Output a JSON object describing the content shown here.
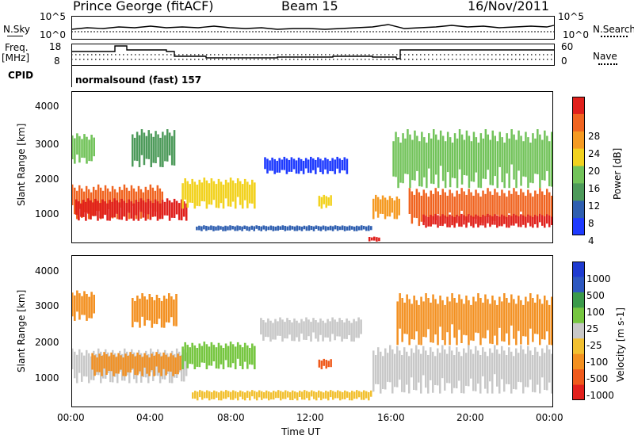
{
  "header": {
    "station": "Prince George (fitACF)",
    "beam": "Beam 15",
    "date": "16/Nov/2011"
  },
  "noise_panel": {
    "left_label": "N.Sky",
    "right_label": "N.Search",
    "left_ticks": [
      "10^5",
      "10^0"
    ],
    "right_ticks": [
      "10^5",
      "10^0"
    ]
  },
  "freq_panel": {
    "left_label_1": "Freq.",
    "left_label_2": "[MHz]",
    "right_label": "Nave",
    "left_ticks": [
      "18",
      "8"
    ],
    "right_ticks": [
      "60",
      "0"
    ]
  },
  "cpid": {
    "label": "CPID",
    "value": "normalsound (fast) 157"
  },
  "time_axis": {
    "label": "Time UT",
    "ticks": [
      "00:00",
      "04:00",
      "08:00",
      "12:00",
      "16:00",
      "20:00",
      "00:00"
    ]
  },
  "colors": {
    "power": [
      "#1f3bff",
      "#2f5fb0",
      "#4d9a5a",
      "#72c35a",
      "#f2d21f",
      "#f59a22",
      "#f06420",
      "#e0201c"
    ],
    "velocity": [
      "#1f3bd0",
      "#2e58c0",
      "#3b9a4a",
      "#76c640",
      "#c8c8c8",
      "#f2c030",
      "#f39020",
      "#ef5a1c",
      "#e2201c"
    ],
    "ground_scatter": "#c0c0c0"
  },
  "chart_data": [
    {
      "type": "heatmap",
      "name": "power",
      "title": "",
      "ylabel": "Slant Range [km]",
      "xlabel": "",
      "ylim": [
        200,
        4600
      ],
      "yticks": [
        "4000",
        "3000",
        "2000",
        "1000"
      ],
      "colorbar_label": "Power [dB]",
      "colorbar_ticks": [
        "28",
        "24",
        "20",
        "16",
        "12",
        "8",
        "4"
      ],
      "regions": [
        {
          "t0": 0.0,
          "t1": 4.6,
          "r0": 900,
          "r1": 1900,
          "level": 6
        },
        {
          "t0": 0.2,
          "t1": 5.8,
          "r0": 850,
          "r1": 1500,
          "level": 7
        },
        {
          "t0": 0.0,
          "t1": 1.2,
          "r0": 2500,
          "r1": 3400,
          "level": 3
        },
        {
          "t0": 3.0,
          "t1": 5.2,
          "r0": 2400,
          "r1": 3500,
          "level": 2
        },
        {
          "t0": 5.5,
          "t1": 9.2,
          "r0": 1200,
          "r1": 2100,
          "level": 4
        },
        {
          "t0": 6.2,
          "t1": 15.0,
          "r0": 550,
          "r1": 720,
          "level": 1
        },
        {
          "t0": 9.6,
          "t1": 13.8,
          "r0": 2200,
          "r1": 2700,
          "level": 0
        },
        {
          "t0": 12.3,
          "t1": 13.0,
          "r0": 1200,
          "r1": 1600,
          "level": 4
        },
        {
          "t0": 14.8,
          "t1": 15.4,
          "r0": 250,
          "r1": 400,
          "level": 7
        },
        {
          "t0": 15.0,
          "t1": 16.4,
          "r0": 900,
          "r1": 1600,
          "level": 5
        },
        {
          "t0": 16.0,
          "t1": 24.0,
          "r0": 1800,
          "r1": 3500,
          "level": 3
        },
        {
          "t0": 16.8,
          "t1": 24.0,
          "r0": 700,
          "r1": 1800,
          "level": 6
        },
        {
          "t0": 17.5,
          "t1": 24.0,
          "r0": 650,
          "r1": 1050,
          "level": 7
        }
      ]
    },
    {
      "type": "heatmap",
      "name": "velocity",
      "title": "",
      "ylabel": "Slant Range [km]",
      "xlabel": "Time UT",
      "ylim": [
        200,
        4600
      ],
      "yticks": [
        "4000",
        "3000",
        "2000",
        "1000"
      ],
      "colorbar_label": "Velocity [m s-1]",
      "colorbar_ticks": [
        "1000",
        "500",
        "100",
        "25",
        "-25",
        "-100",
        "-500",
        "-1000"
      ],
      "regions": [
        {
          "t0": 0.0,
          "t1": 5.8,
          "r0": 900,
          "r1": 1900,
          "level": 4
        },
        {
          "t0": 1.0,
          "t1": 5.5,
          "r0": 1100,
          "r1": 1800,
          "level": 6
        },
        {
          "t0": 0.0,
          "t1": 1.2,
          "r0": 2700,
          "r1": 3600,
          "level": 6
        },
        {
          "t0": 3.0,
          "t1": 5.3,
          "r0": 2500,
          "r1": 3500,
          "level": 6
        },
        {
          "t0": 5.5,
          "t1": 9.2,
          "r0": 1300,
          "r1": 2100,
          "level": 3
        },
        {
          "t0": 6.0,
          "t1": 15.0,
          "r0": 400,
          "r1": 700,
          "level": 5
        },
        {
          "t0": 9.4,
          "t1": 14.5,
          "r0": 2100,
          "r1": 2800,
          "level": 4
        },
        {
          "t0": 12.3,
          "t1": 13.0,
          "r0": 1300,
          "r1": 1600,
          "level": 7
        },
        {
          "t0": 15.0,
          "t1": 24.0,
          "r0": 600,
          "r1": 2000,
          "level": 4
        },
        {
          "t0": 16.2,
          "t1": 24.0,
          "r0": 2000,
          "r1": 3500,
          "level": 6
        }
      ]
    }
  ]
}
